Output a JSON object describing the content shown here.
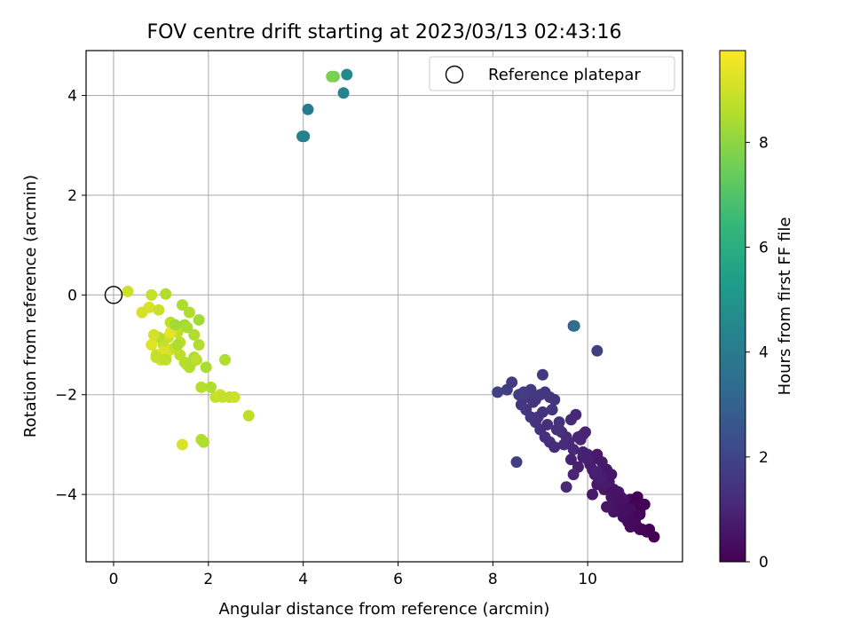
{
  "chart_data": {
    "type": "scatter",
    "title": "FOV centre drift starting at 2023/03/13 02:43:16",
    "xlabel": "Angular distance from reference (arcmin)",
    "ylabel": "Rotation from reference (arcmin)",
    "xlim": [
      -0.58,
      12.0
    ],
    "ylim": [
      -5.35,
      4.9
    ],
    "xticks": [
      0,
      2,
      4,
      6,
      8,
      10
    ],
    "yticks": [
      -4,
      -2,
      0,
      2,
      4
    ],
    "xtick_labels": [
      "0",
      "2",
      "4",
      "6",
      "8",
      "10"
    ],
    "ytick_labels": [
      "−4",
      "−2",
      "0",
      "2",
      "4"
    ],
    "grid": true,
    "legend": {
      "placement": "top-right",
      "entries": [
        "Reference platepar"
      ]
    },
    "reference_point": {
      "name": "Reference platepar",
      "x": 0,
      "y": 0,
      "marker": "hollow-circle"
    },
    "colorbar": {
      "label": "Hours from first FF file",
      "range": [
        0,
        9.75
      ],
      "ticks": [
        0,
        2,
        4,
        6,
        8
      ],
      "tick_labels": [
        "0",
        "2",
        "4",
        "6",
        "8"
      ],
      "colormap": "viridis",
      "colors": [
        "#440154",
        "#482878",
        "#3e4989",
        "#31688e",
        "#26828e",
        "#1f9e89",
        "#35b779",
        "#6ece58",
        "#b5de2b",
        "#fde725"
      ]
    },
    "series": [
      {
        "x": [
          9.7,
          10.2,
          8.5,
          9.05,
          8.1,
          8.3,
          8.4,
          8.55,
          8.65,
          8.75,
          8.8,
          8.9,
          9.0,
          9.1,
          9.2,
          9.25,
          9.3,
          9.4,
          8.6,
          8.7,
          8.85,
          8.95,
          9.05,
          9.15,
          9.35,
          9.45,
          9.55,
          9.65,
          9.75,
          9.85,
          9.95,
          8.8,
          8.9,
          9.0,
          9.1,
          9.2,
          9.3,
          9.5,
          9.6,
          9.7,
          9.8,
          9.9,
          10.0,
          9.55,
          9.65,
          9.8,
          9.9,
          10.1,
          10.2,
          9.4,
          9.7,
          10.05,
          10.3,
          10.4,
          10.5,
          9.9,
          10.0,
          10.1,
          10.15,
          10.3,
          10.35,
          10.45,
          10.55,
          10.6,
          10.65,
          10.7,
          10.75,
          10.8,
          10.85,
          10.9,
          10.95,
          11.0,
          11.05,
          11.1,
          11.2,
          11.3,
          11.4,
          10.1,
          10.2,
          10.35,
          10.5,
          10.6,
          10.7,
          10.8,
          10.9,
          11.0,
          10.4,
          10.55,
          10.75,
          10.85,
          10.95,
          11.05,
          11.15,
          10.25,
          10.45,
          10.65,
          10.75,
          10.85,
          10.95,
          11.0,
          11.1,
          10.9,
          11.0,
          11.1,
          11.25,
          10.5,
          10.6,
          10.7,
          10.2,
          10.3
        ],
        "y": [
          -0.62,
          -1.12,
          -3.35,
          -1.6,
          -1.95,
          -1.9,
          -1.75,
          -2.0,
          -1.95,
          -2.05,
          -1.9,
          -2.1,
          -2.0,
          -1.95,
          -2.05,
          -2.3,
          -2.1,
          -2.55,
          -2.2,
          -2.3,
          -2.15,
          -2.45,
          -2.35,
          -2.6,
          -2.7,
          -2.75,
          -2.85,
          -2.5,
          -2.4,
          -2.9,
          -2.75,
          -2.45,
          -2.55,
          -2.7,
          -2.85,
          -2.95,
          -3.05,
          -3.0,
          -2.95,
          -3.1,
          -2.85,
          -2.8,
          -3.2,
          -3.85,
          -3.3,
          -3.45,
          -3.25,
          -3.3,
          -3.2,
          -2.7,
          -3.6,
          -3.4,
          -3.35,
          -3.5,
          -3.6,
          -3.15,
          -3.3,
          -3.5,
          -3.6,
          -3.7,
          -3.8,
          -3.75,
          -3.9,
          -4.0,
          -4.1,
          -4.05,
          -4.2,
          -4.15,
          -4.25,
          -4.1,
          -4.3,
          -4.2,
          -4.05,
          -4.35,
          -4.2,
          -4.7,
          -4.85,
          -4.0,
          -3.8,
          -3.9,
          -4.05,
          -4.2,
          -4.35,
          -4.4,
          -4.3,
          -4.5,
          -4.25,
          -4.35,
          -4.45,
          -4.55,
          -4.6,
          -4.65,
          -4.7,
          -3.7,
          -3.85,
          -3.95,
          -4.1,
          -4.3,
          -4.5,
          -4.6,
          -4.7,
          -4.65,
          -4.55,
          -4.4,
          -4.75,
          -3.95,
          -4.0,
          -4.15,
          -3.55,
          -3.65
        ],
        "hours": [
          1.9,
          1.85,
          1.8,
          1.7,
          1.9,
          1.8,
          1.75,
          1.7,
          1.8,
          1.75,
          1.7,
          1.6,
          1.65,
          1.6,
          1.55,
          1.5,
          1.5,
          1.4,
          1.6,
          1.55,
          1.5,
          1.45,
          1.4,
          1.35,
          1.3,
          1.25,
          1.2,
          1.15,
          1.1,
          1.05,
          1.0,
          1.5,
          1.45,
          1.4,
          1.35,
          1.3,
          1.25,
          1.2,
          1.15,
          1.1,
          1.05,
          1.0,
          0.95,
          1.1,
          0.9,
          0.85,
          0.8,
          0.75,
          0.7,
          1.4,
          1.0,
          0.75,
          0.7,
          0.65,
          0.6,
          0.9,
          0.85,
          0.8,
          0.75,
          0.7,
          0.65,
          0.6,
          0.55,
          0.5,
          0.45,
          0.4,
          0.35,
          0.3,
          0.25,
          0.2,
          0.15,
          0.1,
          0.05,
          0.05,
          0.1,
          0.05,
          0.0,
          0.7,
          0.65,
          0.6,
          0.55,
          0.5,
          0.45,
          0.4,
          0.35,
          0.3,
          0.6,
          0.5,
          0.4,
          0.3,
          0.2,
          0.15,
          0.1,
          0.8,
          0.7,
          0.6,
          0.5,
          0.4,
          0.3,
          0.2,
          0.15,
          0.25,
          0.2,
          0.15,
          0.1,
          0.55,
          0.5,
          0.45,
          0.85,
          0.8
        ]
      },
      {
        "x": [
          9.72,
          3.98,
          4.02,
          4.1,
          4.85,
          4.92,
          4.65,
          4.6
        ],
        "y": [
          -0.62,
          3.18,
          3.18,
          3.72,
          4.05,
          4.42,
          4.38,
          4.38
        ],
        "hours": [
          3.5,
          4.2,
          4.3,
          4.1,
          4.4,
          4.6,
          7.6,
          7.8
        ]
      },
      {
        "x": [
          0.3,
          0.8,
          0.6,
          0.75,
          1.1,
          0.95,
          1.2,
          1.3,
          1.45,
          1.6,
          1.7,
          1.5,
          1.35,
          1.25,
          1.15,
          1.05,
          0.95,
          0.85,
          0.8,
          0.9,
          1.0,
          1.1,
          1.2,
          1.3,
          1.4,
          1.5,
          1.6,
          1.7,
          1.8,
          1.4,
          1.55,
          1.65,
          1.75,
          1.85,
          1.95,
          2.05,
          2.15,
          2.25,
          2.35,
          2.45,
          2.55,
          2.3,
          2.85,
          1.85,
          1.9,
          1.45,
          1.2,
          1.05,
          1.0,
          1.3,
          1.7,
          1.8,
          1.55,
          1.35,
          1.1,
          0.9
        ],
        "y": [
          0.07,
          0.0,
          -0.35,
          -0.25,
          0.02,
          -0.3,
          -0.55,
          -0.65,
          -0.2,
          -0.35,
          -0.8,
          -0.6,
          -0.75,
          -0.7,
          -0.85,
          -1.0,
          -0.85,
          -0.8,
          -1.0,
          -1.2,
          -1.3,
          -1.25,
          -1.1,
          -1.05,
          -1.2,
          -1.35,
          -1.45,
          -1.25,
          -1.0,
          -0.95,
          -1.4,
          -1.35,
          -1.3,
          -1.85,
          -1.45,
          -1.85,
          -2.05,
          -2.0,
          -1.3,
          -2.05,
          -2.05,
          -2.05,
          -2.42,
          -2.9,
          -2.95,
          -3.0,
          -0.75,
          -1.15,
          -1.3,
          -0.6,
          -0.8,
          -0.5,
          -0.65,
          -1.0,
          -1.3,
          -1.25
        ],
        "hours": [
          9.0,
          8.9,
          9.1,
          9.2,
          8.6,
          9.0,
          8.8,
          8.9,
          8.5,
          8.6,
          8.7,
          8.4,
          8.8,
          8.9,
          9.0,
          8.9,
          8.7,
          9.1,
          9.3,
          9.0,
          8.8,
          9.1,
          9.2,
          8.9,
          8.8,
          8.7,
          8.6,
          8.5,
          8.6,
          8.8,
          8.7,
          8.6,
          8.8,
          8.7,
          8.5,
          8.6,
          8.9,
          9.1,
          8.6,
          8.8,
          9.0,
          8.9,
          8.8,
          8.7,
          8.6,
          9.2,
          9.4,
          9.3,
          9.1,
          8.4,
          8.6,
          8.4,
          8.5,
          8.6,
          8.8,
          8.9
        ]
      }
    ]
  }
}
